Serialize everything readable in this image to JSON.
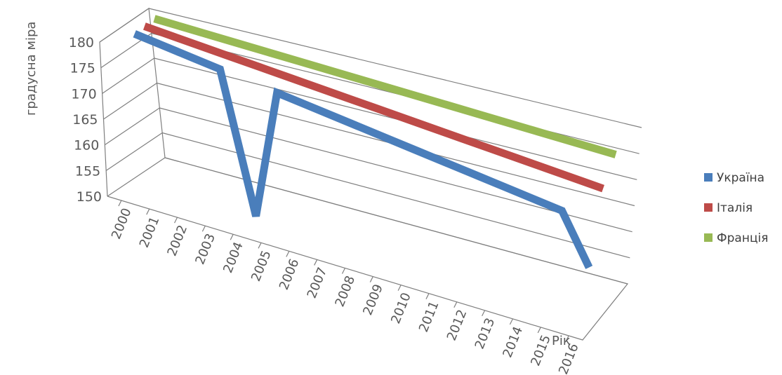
{
  "chart_data": {
    "type": "line",
    "title": "",
    "ylabel": "градусна міра",
    "xlabel": "Рік",
    "ylim": [
      150,
      180
    ],
    "y_ticks": [
      "150",
      "155",
      "160",
      "165",
      "170",
      "175",
      "180"
    ],
    "categories": [
      "2000",
      "2001",
      "2002",
      "2003",
      "2004",
      "2005",
      "2006",
      "2007",
      "2008",
      "2009",
      "2010",
      "2011",
      "2012",
      "2013",
      "2014",
      "2015",
      "2016"
    ],
    "series": [
      {
        "name": "Україна",
        "color": "#4a7ebb",
        "values": [
          180,
          180,
          180,
          180,
          150,
          180,
          180,
          180,
          180,
          180,
          180,
          180,
          180,
          180,
          180,
          180,
          165
        ]
      },
      {
        "name": "Італія",
        "color": "#be4b48",
        "values": [
          180,
          180,
          180,
          180,
          180,
          180,
          180,
          180,
          180,
          180,
          180,
          180,
          180,
          180,
          180,
          180,
          180
        ]
      },
      {
        "name": "Франція",
        "color": "#98b954",
        "values": [
          180,
          180,
          180,
          180,
          180,
          180,
          180,
          180,
          180,
          180,
          180,
          180,
          180,
          180,
          180,
          180,
          180
        ]
      }
    ],
    "grid": true,
    "legend_position": "right",
    "view": "3d"
  }
}
